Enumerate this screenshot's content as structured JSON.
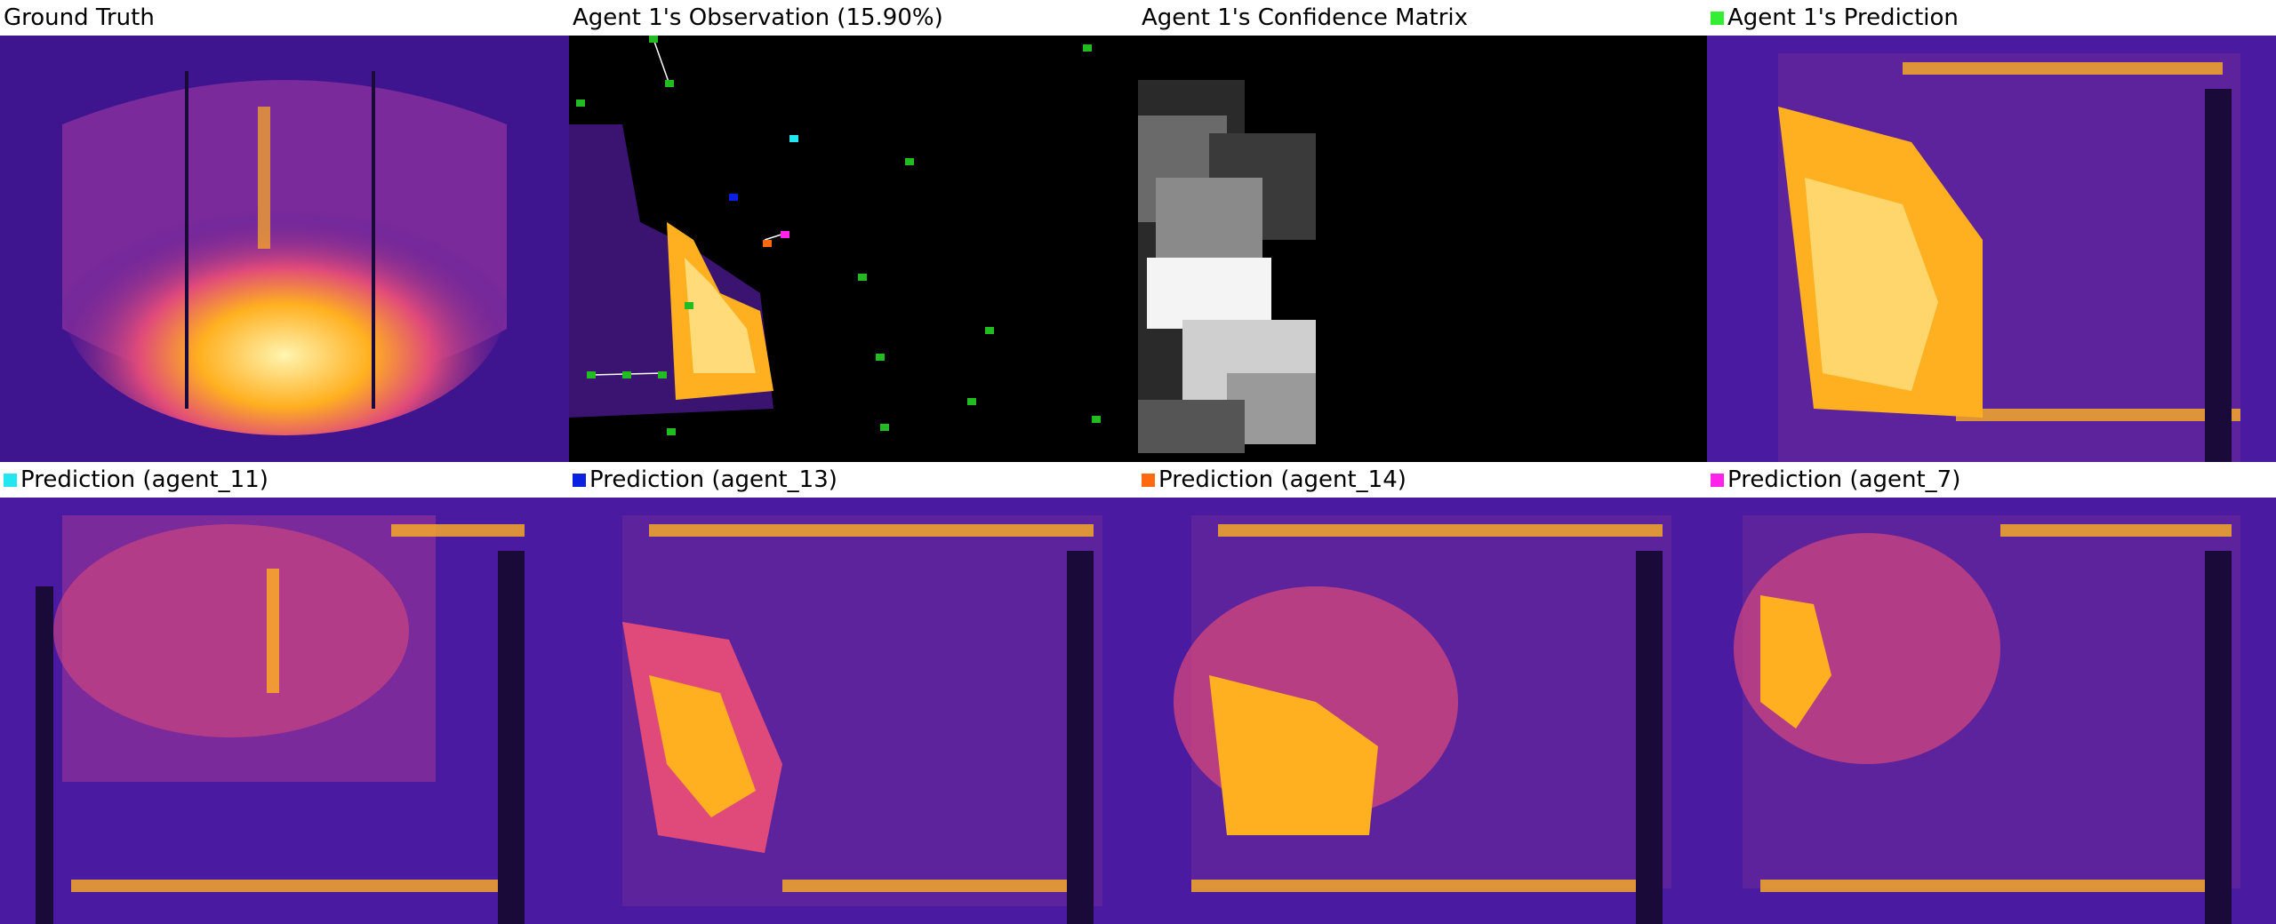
{
  "panels": [
    {
      "title": "Ground Truth"
    },
    {
      "title": "Agent 1's Observation (15.90%)"
    },
    {
      "title": "Agent 1's Confidence Matrix"
    },
    {
      "title": "Agent 1's Prediction",
      "swatch": "#33ee33"
    },
    {
      "title": "Prediction (agent_11)",
      "swatch": "#22e6f0"
    },
    {
      "title": "Prediction (agent_13)",
      "swatch": "#0a20e0"
    },
    {
      "title": "Prediction (agent_14)",
      "swatch": "#ff6a10"
    },
    {
      "title": "Prediction (agent_7)",
      "swatch": "#ff22e8"
    }
  ],
  "colors": {
    "background": "#4a1aa0",
    "background_dark": "#1a0a3a",
    "heat_mid": "#e04a7a",
    "heat_high": "#ffb020",
    "heat_peak": "#fff4b0",
    "agent_marker": "#22bb22"
  }
}
